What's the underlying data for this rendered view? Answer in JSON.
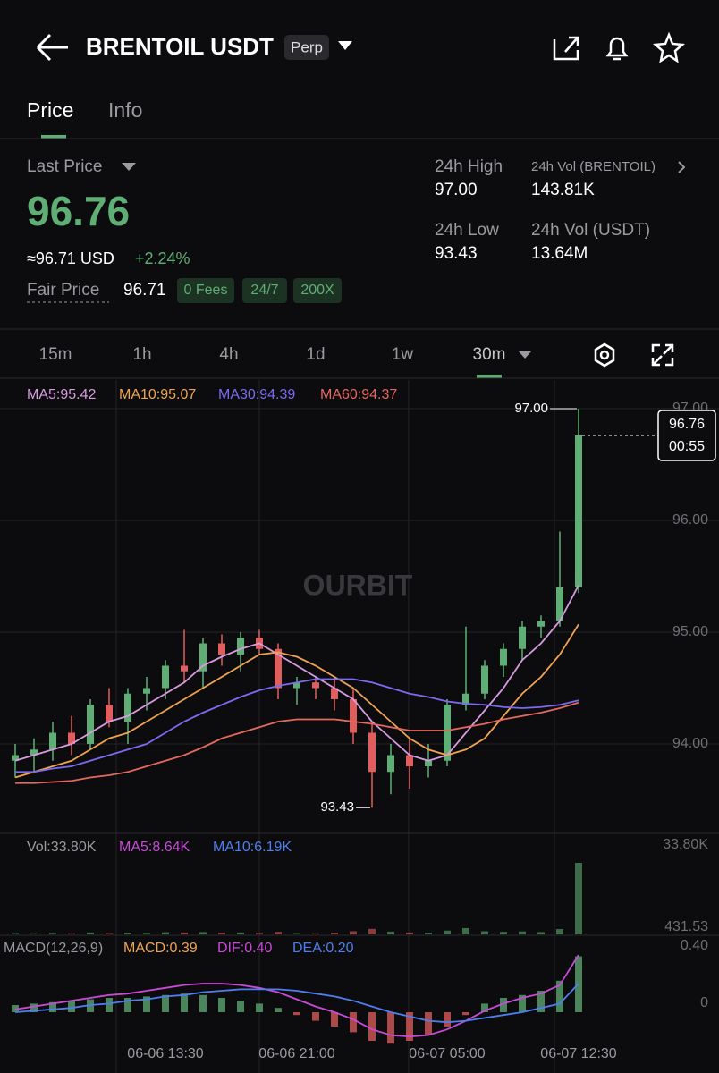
{
  "header": {
    "title": "BRENTOIL USDT",
    "badge": "Perp"
  },
  "tabs": [
    "Price",
    "Info"
  ],
  "summary": {
    "last_price_label": "Last Price",
    "last_price": "96.76",
    "usd_price": "≈96.71 USD",
    "change": "+2.24%",
    "fair_price_label": "Fair Price",
    "fair_price": "96.71",
    "badges": [
      "0 Fees",
      "24/7",
      "200X"
    ],
    "stats": [
      {
        "label": "24h High",
        "value": "97.00"
      },
      {
        "label": "24h Vol (BRENTOIL)",
        "value": "143.81K"
      },
      {
        "label": "24h Low",
        "value": "93.43"
      },
      {
        "label": "24h Vol (USDT)",
        "value": "13.64M"
      }
    ]
  },
  "intervals": [
    "15m",
    "1h",
    "4h",
    "1d",
    "1w",
    "30m"
  ],
  "watermark": "OURBIT",
  "chart_data": {
    "type": "candlestick",
    "categories": [
      null,
      null,
      null,
      null,
      null,
      null,
      null,
      null,
      "06-06 13:30",
      null,
      null,
      null,
      null,
      null,
      null,
      "06-06 21:00",
      null,
      null,
      null,
      null,
      null,
      null,
      null,
      "06-07 05:00",
      null,
      null,
      null,
      null,
      null,
      null,
      "06-07 12:30"
    ],
    "up_color": "#5fae75",
    "down_color": "#e15e5e",
    "open": [
      93.85,
      93.9,
      93.95,
      94.1,
      94.0,
      94.35,
      94.2,
      94.45,
      94.5,
      94.7,
      94.65,
      94.9,
      94.8,
      94.95,
      94.85,
      94.5,
      94.55,
      94.5,
      94.4,
      94.1,
      93.75,
      93.9,
      93.8,
      93.85,
      94.35,
      94.45,
      94.7,
      94.85,
      95.05,
      95.1,
      95.4
    ],
    "high": [
      94.0,
      94.05,
      94.2,
      94.25,
      94.4,
      94.5,
      94.5,
      94.6,
      94.75,
      95.02,
      94.95,
      94.98,
      95.0,
      95.02,
      94.9,
      94.6,
      94.6,
      94.6,
      94.5,
      94.2,
      94.0,
      94.05,
      94.0,
      94.4,
      95.05,
      94.75,
      94.9,
      95.1,
      95.15,
      95.9,
      97.0
    ],
    "low": [
      93.7,
      93.75,
      93.85,
      93.9,
      93.95,
      94.15,
      94.0,
      94.3,
      94.4,
      94.55,
      94.5,
      94.7,
      94.65,
      94.8,
      94.4,
      94.35,
      94.4,
      94.3,
      94.0,
      93.43,
      93.55,
      93.6,
      93.7,
      93.8,
      94.3,
      94.4,
      94.6,
      94.75,
      94.95,
      95.05,
      95.35
    ],
    "close": [
      93.9,
      93.95,
      94.1,
      94.0,
      94.35,
      94.2,
      94.45,
      94.5,
      94.7,
      94.65,
      94.9,
      94.8,
      94.95,
      94.85,
      94.5,
      94.55,
      94.5,
      94.4,
      94.1,
      93.75,
      93.9,
      93.8,
      93.85,
      94.35,
      94.45,
      94.7,
      94.85,
      95.05,
      95.1,
      95.4,
      96.76
    ],
    "ylim": [
      93.2,
      97.256
    ],
    "yticks": [
      {
        "value": 97,
        "label": "97.00"
      },
      {
        "value": 96,
        "label": "96.00"
      },
      {
        "value": 95,
        "label": "95.00"
      },
      {
        "value": 94,
        "label": "94.00"
      }
    ],
    "grid": true,
    "high_label": "97.00",
    "low_label": "93.43",
    "last_label": "96.76",
    "countdown": "00:55",
    "series": [
      {
        "name": "MA5:95.42",
        "color": "#d79be0",
        "values": [
          93.85,
          93.9,
          93.95,
          94.0,
          94.1,
          94.2,
          94.25,
          94.35,
          94.45,
          94.55,
          94.7,
          94.78,
          94.85,
          94.9,
          94.8,
          94.7,
          94.6,
          94.5,
          94.4,
          94.2,
          94.05,
          93.9,
          93.85,
          93.9,
          94.1,
          94.3,
          94.5,
          94.75,
          94.9,
          95.1,
          95.42
        ]
      },
      {
        "name": "MA10:95.07",
        "color": "#f0a350",
        "values": [
          93.7,
          93.75,
          93.8,
          93.85,
          93.95,
          94.05,
          94.1,
          94.2,
          94.3,
          94.4,
          94.5,
          94.6,
          94.7,
          94.8,
          94.82,
          94.78,
          94.7,
          94.6,
          94.5,
          94.35,
          94.2,
          94.05,
          93.95,
          93.9,
          93.95,
          94.05,
          94.25,
          94.45,
          94.6,
          94.8,
          95.07
        ]
      },
      {
        "name": "MA30:94.39",
        "color": "#7b6bf0",
        "values": [
          93.75,
          93.75,
          93.78,
          93.8,
          93.85,
          93.9,
          93.95,
          94.0,
          94.1,
          94.2,
          94.28,
          94.35,
          94.42,
          94.48,
          94.52,
          94.55,
          94.58,
          94.58,
          94.58,
          94.55,
          94.5,
          94.45,
          94.42,
          94.38,
          94.36,
          94.35,
          94.33,
          94.32,
          94.33,
          94.35,
          94.39
        ]
      },
      {
        "name": "MA60:94.37",
        "color": "#e5685f",
        "values": [
          93.65,
          93.65,
          93.66,
          93.67,
          93.7,
          93.72,
          93.75,
          93.8,
          93.85,
          93.9,
          93.97,
          94.05,
          94.1,
          94.15,
          94.2,
          94.22,
          94.22,
          94.22,
          94.2,
          94.18,
          94.15,
          94.12,
          94.12,
          94.12,
          94.15,
          94.18,
          94.22,
          94.25,
          94.28,
          94.32,
          94.37
        ]
      }
    ],
    "volume": {
      "legend": [
        {
          "name": "Vol:33.80K",
          "color": "#9a9aa0"
        },
        {
          "name": "MA5:8.64K",
          "color": "#c94ad6"
        },
        {
          "name": "MA10:6.19K",
          "color": "#4d7ff0"
        }
      ],
      "values": [
        600,
        500,
        700,
        500,
        900,
        600,
        800,
        700,
        1000,
        900,
        1100,
        800,
        900,
        700,
        1200,
        600,
        500,
        800,
        1500,
        2600,
        1300,
        900,
        800,
        1800,
        3000,
        1500,
        1200,
        1400,
        1100,
        2500,
        33800
      ],
      "ylim": [
        0,
        33800
      ],
      "yticks": [
        {
          "value": 33800,
          "label": "33.80K"
        },
        {
          "value": 431.53,
          "label": "431.53"
        }
      ]
    },
    "macd": {
      "legend": [
        {
          "name": "MACD(12,26,9)",
          "color": "#9a9aa0"
        },
        {
          "name": "MACD:0.39",
          "color": "#f0a350"
        },
        {
          "name": "DIF:0.40",
          "color": "#c94ad6"
        },
        {
          "name": "DEA:0.20",
          "color": "#4d7ff0"
        }
      ],
      "values": [
        0.05,
        0.06,
        0.07,
        0.08,
        0.09,
        0.1,
        0.1,
        0.11,
        0.12,
        0.13,
        0.12,
        0.1,
        0.08,
        0.06,
        0.03,
        -0.02,
        -0.06,
        -0.1,
        -0.14,
        -0.2,
        -0.22,
        -0.2,
        -0.16,
        -0.1,
        -0.02,
        0.06,
        0.1,
        0.12,
        0.15,
        0.22,
        0.39
      ],
      "dif": [
        0.02,
        0.04,
        0.06,
        0.08,
        0.1,
        0.12,
        0.13,
        0.15,
        0.17,
        0.19,
        0.2,
        0.2,
        0.19,
        0.17,
        0.14,
        0.09,
        0.04,
        0,
        -0.05,
        -0.12,
        -0.16,
        -0.17,
        -0.16,
        -0.12,
        -0.06,
        0.01,
        0.06,
        0.1,
        0.13,
        0.19,
        0.4
      ],
      "dea": [
        0,
        0.01,
        0.02,
        0.03,
        0.05,
        0.06,
        0.08,
        0.09,
        0.11,
        0.12,
        0.14,
        0.15,
        0.16,
        0.16,
        0.16,
        0.15,
        0.13,
        0.11,
        0.08,
        0.04,
        0,
        -0.03,
        -0.06,
        -0.07,
        -0.06,
        -0.04,
        -0.02,
        0,
        0.03,
        0.06,
        0.2
      ],
      "ylim": [
        -0.3,
        0.4
      ],
      "yticks": [
        {
          "value": 0.4,
          "label": "0.40"
        },
        {
          "value": 0,
          "label": "0"
        }
      ]
    }
  }
}
